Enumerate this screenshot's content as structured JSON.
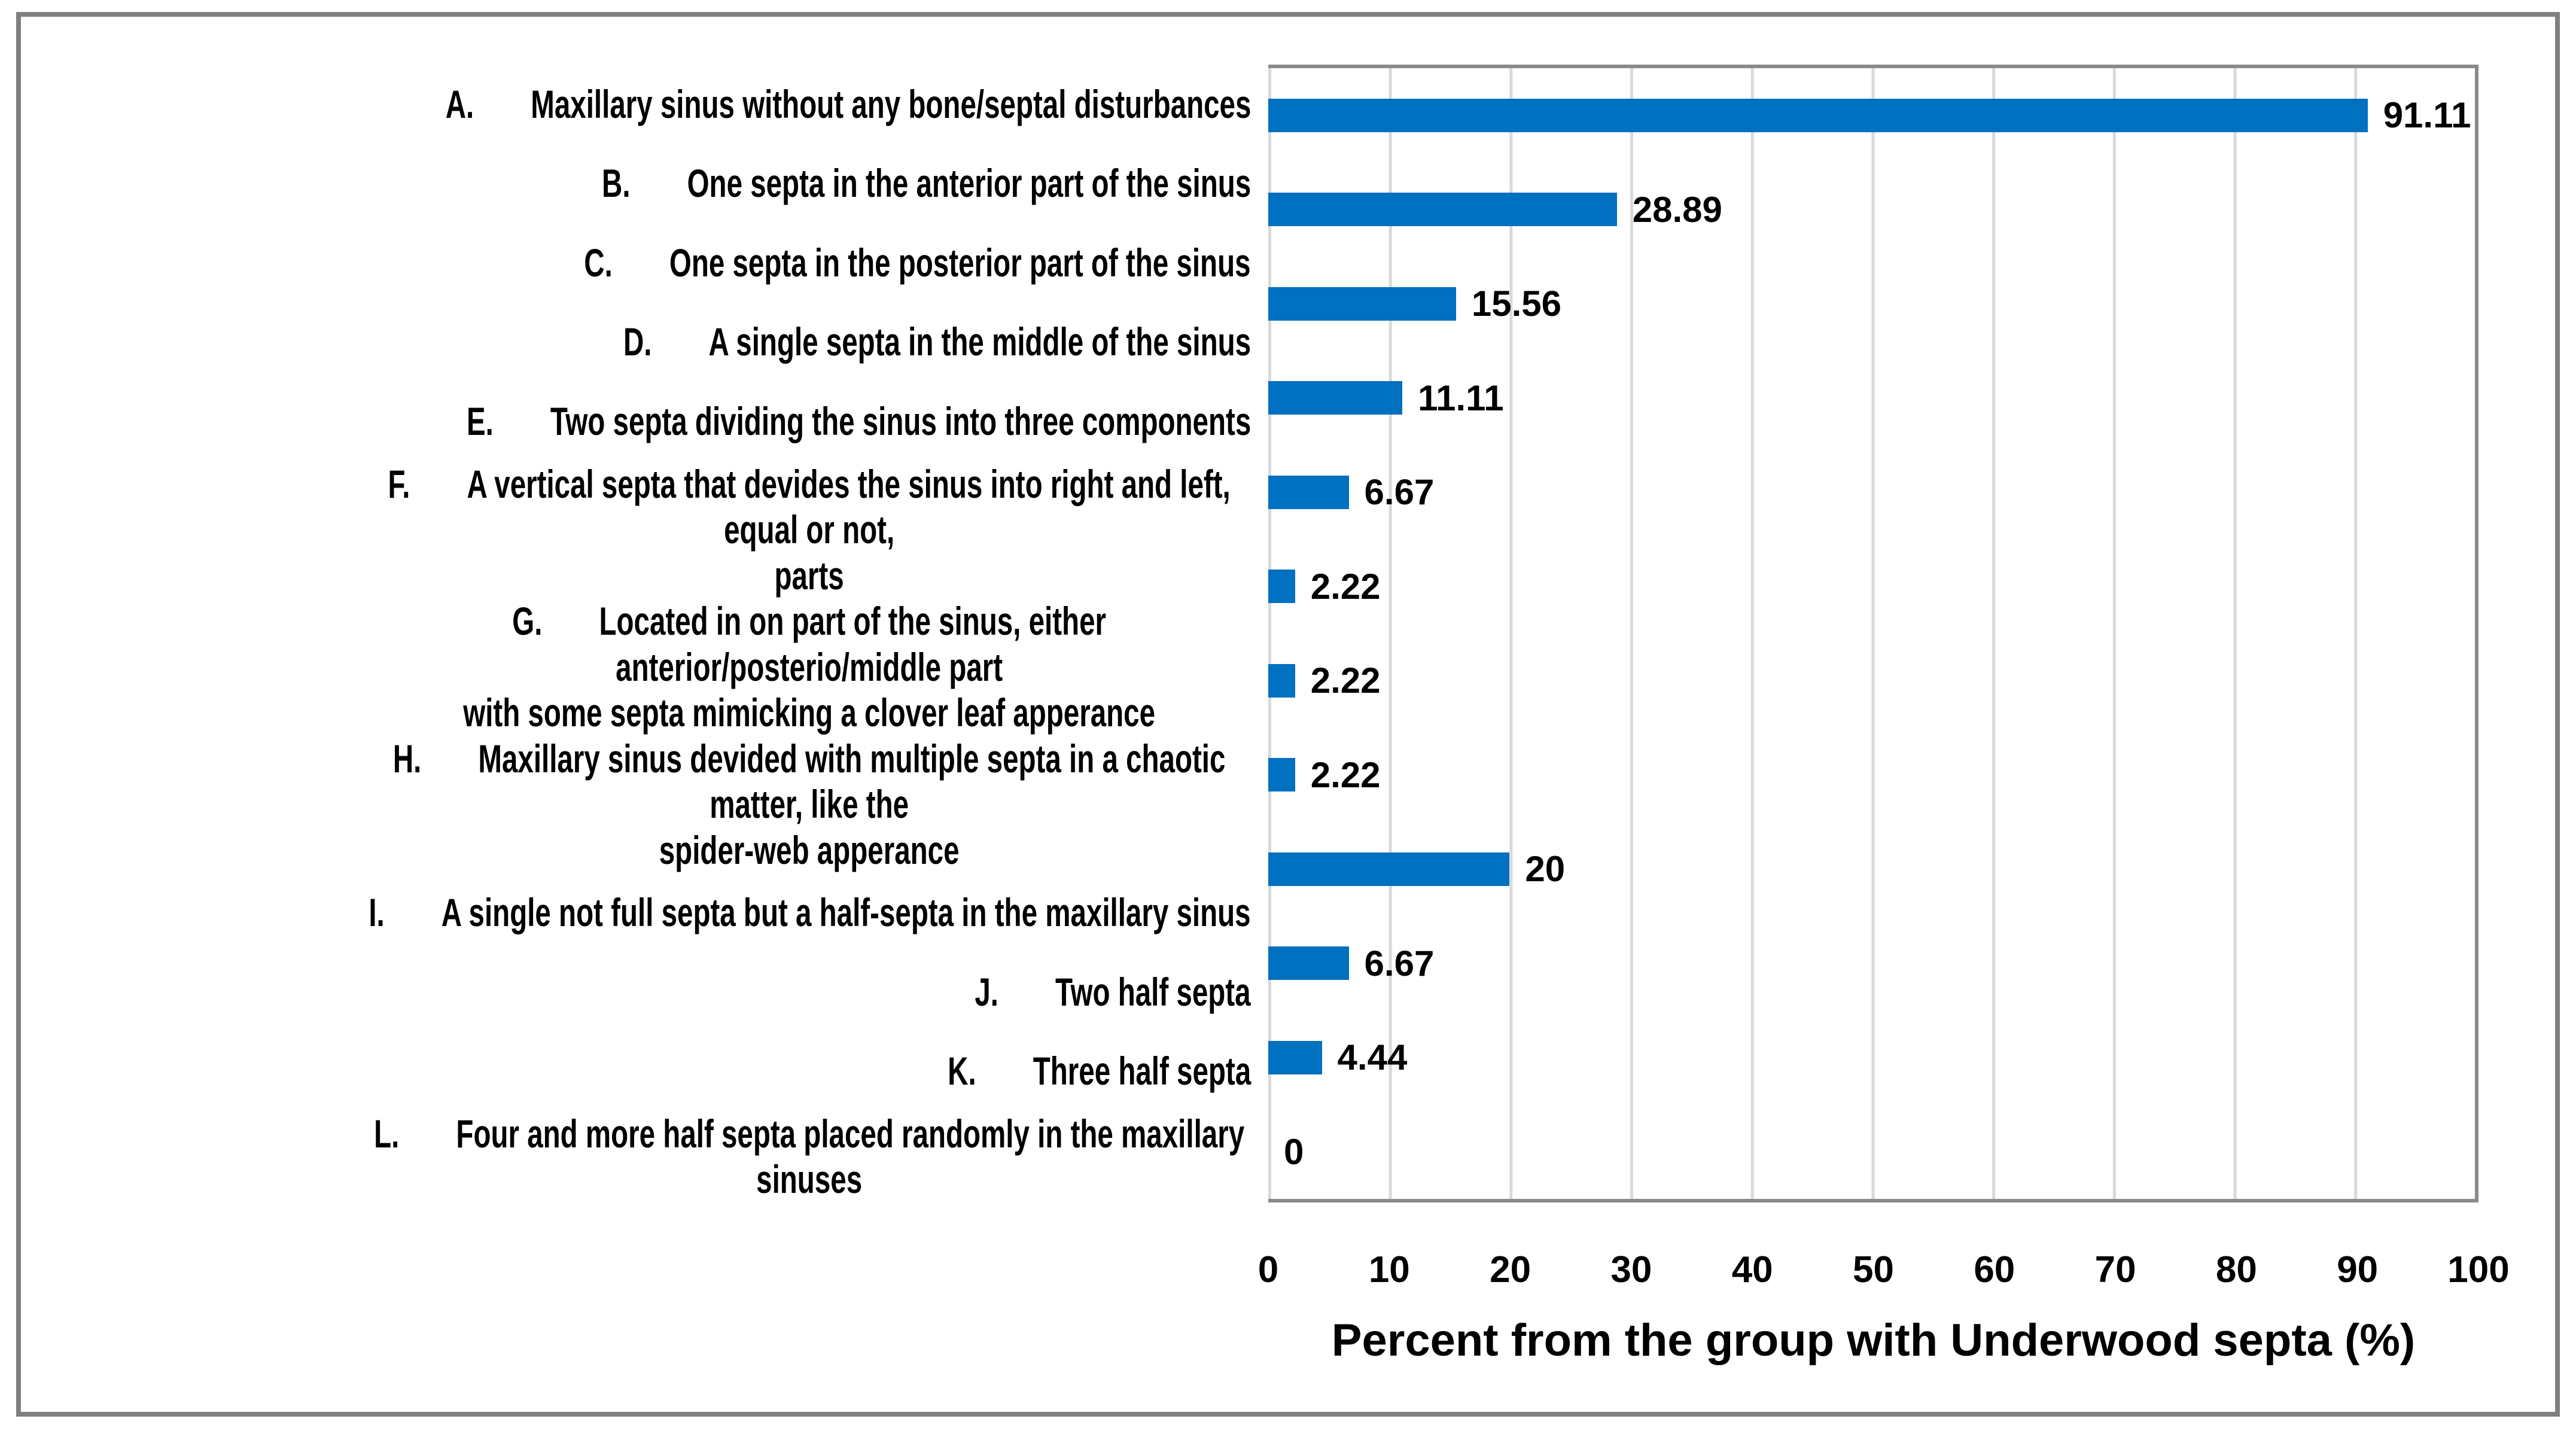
{
  "chart_data": {
    "type": "bar",
    "orientation": "horizontal",
    "title": "",
    "xlabel": "Percent from the group with Underwood septa (%)",
    "ylabel": "",
    "xlim": [
      0,
      100
    ],
    "xticks": [
      "0",
      "10",
      "20",
      "30",
      "40",
      "50",
      "60",
      "70",
      "80",
      "90",
      "100"
    ],
    "grid": "vertical-gridlines-on",
    "legend": "none",
    "categories": [
      {
        "letter": "A.",
        "label": "Maxillary sinus without any bone/septal disturbances",
        "value": 91.11,
        "value_label": "91.11"
      },
      {
        "letter": "B.",
        "label": "One septa in the anterior part of the sinus",
        "value": 28.89,
        "value_label": "28.89"
      },
      {
        "letter": "C.",
        "label": "One septa in the posterior part of the sinus",
        "value": 15.56,
        "value_label": "15.56"
      },
      {
        "letter": "D.",
        "label": "A single septa in the middle of the sinus",
        "value": 11.11,
        "value_label": "11.11"
      },
      {
        "letter": "E.",
        "label": "Two septa dividing the sinus into three components",
        "value": 6.67,
        "value_label": "6.67"
      },
      {
        "letter": "F.",
        "label": "A vertical septa that devides the sinus into right and left, equal or not,\nparts",
        "value": 2.22,
        "value_label": "2.22"
      },
      {
        "letter": "G.",
        "label": "Located in on part of the sinus, either anterior/posterio/middle part\nwith some septa mimicking a clover leaf apperance",
        "value": 2.22,
        "value_label": "2.22"
      },
      {
        "letter": "H.",
        "label": "Maxillary sinus devided with multiple septa in a chaotic matter, like the\nspider-web apperance",
        "value": 2.22,
        "value_label": "2.22"
      },
      {
        "letter": "I.",
        "label": "A single not full septa but a half-septa in the maxillary sinus",
        "value": 20,
        "value_label": "20"
      },
      {
        "letter": "J.",
        "label": "Two half septa",
        "value": 6.67,
        "value_label": "6.67"
      },
      {
        "letter": "K.",
        "label": "Three half septa",
        "value": 4.44,
        "value_label": "4.44"
      },
      {
        "letter": "L.",
        "label": "Four and more half septa placed randomly in the maxillary sinuses",
        "value": 0,
        "value_label": "0"
      }
    ],
    "colors": {
      "bar": "#0070C0",
      "gridline": "#D9D9D9",
      "axis_border": "#8A8A8A",
      "figure_frame": "#7F7F7F",
      "text": "#000000",
      "background": "#FFFFFF"
    }
  }
}
